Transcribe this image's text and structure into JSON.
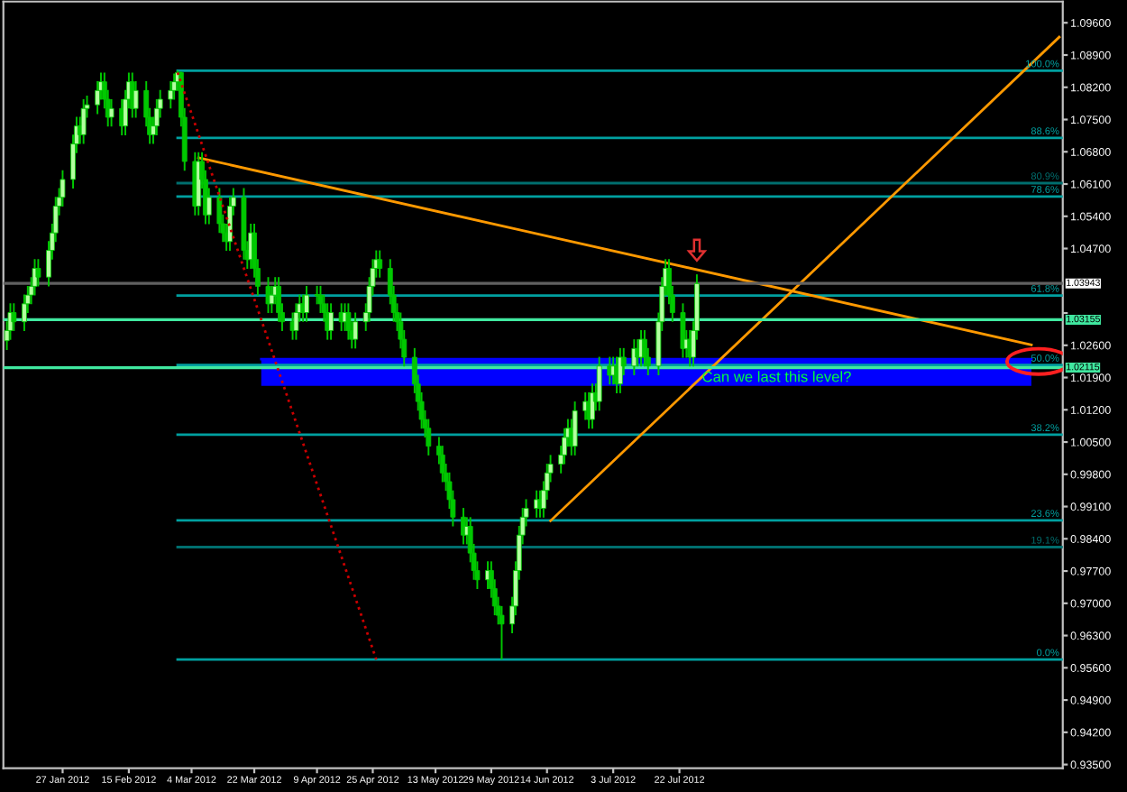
{
  "chart_data": {
    "type": "candlestick",
    "x": [
      "2012-01-11",
      "2012-01-12",
      "2012-01-13",
      "2012-01-16",
      "2012-01-17",
      "2012-01-18",
      "2012-01-19",
      "2012-01-20",
      "2012-01-23",
      "2012-01-24",
      "2012-01-25",
      "2012-01-26",
      "2012-01-27",
      "2012-01-30",
      "2012-01-31",
      "2012-02-01",
      "2012-02-02",
      "2012-02-03",
      "2012-02-06",
      "2012-02-07",
      "2012-02-08",
      "2012-02-09",
      "2012-02-10",
      "2012-02-13",
      "2012-02-14",
      "2012-02-15",
      "2012-02-16",
      "2012-02-17",
      "2012-02-20",
      "2012-02-21",
      "2012-02-22",
      "2012-02-23",
      "2012-02-24",
      "2012-02-27",
      "2012-02-28",
      "2012-02-29",
      "2012-03-01",
      "2012-03-02",
      "2012-03-05",
      "2012-03-06",
      "2012-03-07",
      "2012-03-08",
      "2012-03-09",
      "2012-03-12",
      "2012-03-13",
      "2012-03-14",
      "2012-03-15",
      "2012-03-16",
      "2012-03-19",
      "2012-03-20",
      "2012-03-21",
      "2012-03-22",
      "2012-03-23",
      "2012-03-26",
      "2012-03-27",
      "2012-03-28",
      "2012-03-29",
      "2012-03-30",
      "2012-04-02",
      "2012-04-03",
      "2012-04-04",
      "2012-04-05",
      "2012-04-06",
      "2012-04-09",
      "2012-04-10",
      "2012-04-11",
      "2012-04-12",
      "2012-04-13",
      "2012-04-16",
      "2012-04-17",
      "2012-04-18",
      "2012-04-19",
      "2012-04-20",
      "2012-04-23",
      "2012-04-24",
      "2012-04-25",
      "2012-04-26",
      "2012-04-27",
      "2012-04-30",
      "2012-05-01",
      "2012-05-02",
      "2012-05-03",
      "2012-05-04",
      "2012-05-07",
      "2012-05-08",
      "2012-05-09",
      "2012-05-10",
      "2012-05-11",
      "2012-05-14",
      "2012-05-15",
      "2012-05-16",
      "2012-05-17",
      "2012-05-18",
      "2012-05-21",
      "2012-05-22",
      "2012-05-23",
      "2012-05-24",
      "2012-05-25",
      "2012-05-28",
      "2012-05-29",
      "2012-05-30",
      "2012-05-31",
      "2012-06-01",
      "2012-06-04",
      "2012-06-05",
      "2012-06-06",
      "2012-06-07",
      "2012-06-08",
      "2012-06-11",
      "2012-06-12",
      "2012-06-13",
      "2012-06-14",
      "2012-06-15",
      "2012-06-18",
      "2012-06-19",
      "2012-06-20",
      "2012-06-21",
      "2012-06-22",
      "2012-06-25",
      "2012-06-26",
      "2012-06-27",
      "2012-06-28",
      "2012-06-29",
      "2012-07-02",
      "2012-07-03",
      "2012-07-04",
      "2012-07-05",
      "2012-07-06",
      "2012-07-09",
      "2012-07-10",
      "2012-07-11",
      "2012-07-12",
      "2012-07-13",
      "2012-07-16",
      "2012-07-17",
      "2012-07-18",
      "2012-07-19",
      "2012-07-20",
      "2012-07-23",
      "2012-07-24",
      "2012-07-25",
      "2012-07-26",
      "2012-07-27"
    ],
    "ohlc": [
      [
        1.027,
        1.0312,
        1.025,
        1.0292
      ],
      [
        1.0292,
        1.0351,
        1.0272,
        1.0331
      ],
      [
        1.0331,
        1.0351,
        1.0291,
        1.0311
      ],
      [
        1.0311,
        1.037,
        1.0291,
        1.035
      ],
      [
        1.035,
        1.0389,
        1.033,
        1.0369
      ],
      [
        1.0369,
        1.0408,
        1.0349,
        1.0388
      ],
      [
        1.0388,
        1.0447,
        1.0368,
        1.0427
      ],
      [
        1.0427,
        1.0447,
        1.0388,
        1.0408
      ],
      [
        1.0408,
        1.0486,
        1.0388,
        1.0466
      ],
      [
        1.0466,
        1.0524,
        1.0446,
        1.0504
      ],
      [
        1.0504,
        1.0582,
        1.0484,
        1.0562
      ],
      [
        1.0562,
        1.0601,
        1.0542,
        1.0581
      ],
      [
        1.0581,
        1.064,
        1.0561,
        1.062
      ],
      [
        1.062,
        1.0717,
        1.06,
        1.0697
      ],
      [
        1.0697,
        1.0756,
        1.0677,
        1.0736
      ],
      [
        1.0736,
        1.0756,
        1.0697,
        1.0717
      ],
      [
        1.0717,
        1.0794,
        1.0697,
        1.0774
      ],
      [
        1.0774,
        1.0802,
        1.0754,
        1.0782
      ],
      [
        1.0782,
        1.0833,
        1.0762,
        1.0813
      ],
      [
        1.0813,
        1.0852,
        1.0793,
        1.0832
      ],
      [
        1.0832,
        1.0852,
        1.0774,
        1.0794
      ],
      [
        1.0794,
        1.0814,
        1.0735,
        1.0755
      ],
      [
        1.0755,
        1.0794,
        1.0735,
        1.0774
      ],
      [
        1.0774,
        1.0794,
        1.0716,
        1.0736
      ],
      [
        1.0736,
        1.0814,
        1.0716,
        1.0794
      ],
      [
        1.0794,
        1.0852,
        1.0774,
        1.0832
      ],
      [
        1.0832,
        1.0852,
        1.0754,
        1.0774
      ],
      [
        1.0774,
        1.0833,
        1.0754,
        1.0813
      ],
      [
        1.0813,
        1.0833,
        1.0735,
        1.0755
      ],
      [
        1.0755,
        1.0775,
        1.0697,
        1.0717
      ],
      [
        1.0717,
        1.0756,
        1.0697,
        1.0736
      ],
      [
        1.0736,
        1.0794,
        1.0716,
        1.0774
      ],
      [
        1.0774,
        1.0814,
        1.0754,
        1.0794
      ],
      [
        1.0794,
        1.0833,
        1.0774,
        1.0813
      ],
      [
        1.0813,
        1.085,
        1.0793,
        1.0832
      ],
      [
        1.0832,
        1.0856,
        1.0812,
        1.0852
      ],
      [
        1.0852,
        1.0854,
        1.0735,
        1.0755
      ],
      [
        1.0755,
        1.0775,
        1.0639,
        1.0659
      ],
      [
        1.0659,
        1.0679,
        1.0542,
        1.0562
      ],
      [
        1.0562,
        1.0679,
        1.0542,
        1.0659
      ],
      [
        1.0659,
        1.0679,
        1.06,
        1.062
      ],
      [
        1.062,
        1.064,
        1.0523,
        1.0543
      ],
      [
        1.0543,
        1.0601,
        1.0523,
        1.0581
      ],
      [
        1.0581,
        1.0601,
        1.0504,
        1.0524
      ],
      [
        1.0524,
        1.0544,
        1.0484,
        1.0504
      ],
      [
        1.0504,
        1.0524,
        1.0465,
        1.0485
      ],
      [
        1.0485,
        1.0582,
        1.0465,
        1.0562
      ],
      [
        1.0562,
        1.0601,
        1.0542,
        1.0581
      ],
      [
        1.0581,
        1.0601,
        1.0446,
        1.0466
      ],
      [
        1.0466,
        1.0486,
        1.0426,
        1.0446
      ],
      [
        1.0446,
        1.0524,
        1.0426,
        1.0504
      ],
      [
        1.0504,
        1.0524,
        1.0407,
        1.0427
      ],
      [
        1.0427,
        1.0447,
        1.0368,
        1.0388
      ],
      [
        1.0388,
        1.0408,
        1.033,
        1.035
      ],
      [
        1.035,
        1.0389,
        1.033,
        1.0369
      ],
      [
        1.0369,
        1.0408,
        1.0349,
        1.0388
      ],
      [
        1.0388,
        1.0408,
        1.0311,
        1.0331
      ],
      [
        1.0331,
        1.0351,
        1.0291,
        1.0311
      ],
      [
        1.0311,
        1.0331,
        1.0272,
        1.0292
      ],
      [
        1.0292,
        1.0351,
        1.0272,
        1.0331
      ],
      [
        1.0331,
        1.037,
        1.0311,
        1.035
      ],
      [
        1.035,
        1.037,
        1.0311,
        1.0331
      ],
      [
        1.0331,
        1.0389,
        1.0311,
        1.0369
      ],
      [
        1.0369,
        1.0389,
        1.0349,
        1.0369
      ],
      [
        1.0369,
        1.0389,
        1.033,
        1.035
      ],
      [
        1.035,
        1.037,
        1.0311,
        1.0331
      ],
      [
        1.0331,
        1.0351,
        1.0272,
        1.0292
      ],
      [
        1.0292,
        1.0351,
        1.0272,
        1.0331
      ],
      [
        1.0331,
        1.0351,
        1.0291,
        1.0311
      ],
      [
        1.0311,
        1.0351,
        1.0291,
        1.0331
      ],
      [
        1.0331,
        1.0351,
        1.0272,
        1.0292
      ],
      [
        1.0292,
        1.0312,
        1.0253,
        1.0273
      ],
      [
        1.0273,
        1.0331,
        1.0253,
        1.0311
      ],
      [
        1.0311,
        1.0351,
        1.0291,
        1.0331
      ],
      [
        1.0331,
        1.0408,
        1.0311,
        1.0388
      ],
      [
        1.0388,
        1.0447,
        1.0368,
        1.0427
      ],
      [
        1.0427,
        1.0466,
        1.0407,
        1.0446
      ],
      [
        1.0446,
        1.0466,
        1.0407,
        1.0427
      ],
      [
        1.0427,
        1.0447,
        1.0349,
        1.0369
      ],
      [
        1.0369,
        1.0389,
        1.0311,
        1.0331
      ],
      [
        1.0331,
        1.0351,
        1.0291,
        1.0311
      ],
      [
        1.0311,
        1.0331,
        1.0253,
        1.0273
      ],
      [
        1.0273,
        1.0293,
        1.0214,
        1.0234
      ],
      [
        1.0234,
        1.0254,
        1.0156,
        1.0176
      ],
      [
        1.0176,
        1.0196,
        1.0118,
        1.0138
      ],
      [
        1.0138,
        1.0158,
        1.0079,
        1.0099
      ],
      [
        1.0099,
        1.0119,
        1.006,
        1.008
      ],
      [
        1.008,
        1.01,
        1.0021,
        1.0041
      ],
      [
        1.0041,
        1.0061,
        1.0002,
        1.0022
      ],
      [
        1.0022,
        1.0042,
        0.9963,
        0.9983
      ],
      [
        0.9983,
        1.0003,
        0.9944,
        0.9964
      ],
      [
        0.9964,
        0.9984,
        0.9905,
        0.9925
      ],
      [
        0.9925,
        0.9945,
        0.9867,
        0.9887
      ],
      [
        0.9887,
        0.9907,
        0.9828,
        0.9848
      ],
      [
        0.9848,
        0.9887,
        0.9828,
        0.9867
      ],
      [
        0.9867,
        0.9887,
        0.9789,
        0.9809
      ],
      [
        0.9809,
        0.9829,
        0.9751,
        0.9771
      ],
      [
        0.9771,
        0.9791,
        0.9731,
        0.9751
      ],
      [
        0.9751,
        0.9791,
        0.9731,
        0.9771
      ],
      [
        0.9771,
        0.9791,
        0.9712,
        0.9732
      ],
      [
        0.9732,
        0.9752,
        0.9674,
        0.9694
      ],
      [
        0.9694,
        0.9714,
        0.9654,
        0.9674
      ],
      [
        0.9674,
        0.9694,
        0.9578,
        0.9655
      ],
      [
        0.9655,
        0.9714,
        0.9635,
        0.9694
      ],
      [
        0.9694,
        0.9791,
        0.9674,
        0.9771
      ],
      [
        0.9771,
        0.9868,
        0.9751,
        0.9848
      ],
      [
        0.9848,
        0.9907,
        0.9828,
        0.9887
      ],
      [
        0.9887,
        0.9926,
        0.9867,
        0.9906
      ],
      [
        0.9906,
        0.9945,
        0.9886,
        0.9925
      ],
      [
        0.9925,
        0.9945,
        0.9886,
        0.9906
      ],
      [
        0.9906,
        0.9965,
        0.9886,
        0.9945
      ],
      [
        0.9945,
        1.0003,
        0.9925,
        0.9983
      ],
      [
        0.9983,
        1.0022,
        0.9963,
        1.0002
      ],
      [
        1.0002,
        1.0042,
        0.9982,
        1.0022
      ],
      [
        1.0022,
        1.008,
        1.0002,
        1.006
      ],
      [
        1.006,
        1.01,
        1.004,
        1.008
      ],
      [
        1.008,
        1.01,
        1.0021,
        1.0041
      ],
      [
        1.0041,
        1.0138,
        1.0021,
        1.0118
      ],
      [
        1.0118,
        1.0158,
        1.0098,
        1.0138
      ],
      [
        1.0138,
        1.0158,
        1.0079,
        1.0099
      ],
      [
        1.0099,
        1.0177,
        1.0079,
        1.0157
      ],
      [
        1.0157,
        1.0177,
        1.0118,
        1.0138
      ],
      [
        1.0138,
        1.0235,
        1.0118,
        1.0215
      ],
      [
        1.0215,
        1.0235,
        1.0175,
        1.0195
      ],
      [
        1.0195,
        1.0235,
        1.0175,
        1.0215
      ],
      [
        1.0215,
        1.0235,
        1.0156,
        1.0176
      ],
      [
        1.0176,
        1.0254,
        1.0156,
        1.0234
      ],
      [
        1.0234,
        1.0254,
        1.0195,
        1.0215
      ],
      [
        1.0215,
        1.0273,
        1.0195,
        1.0253
      ],
      [
        1.0253,
        1.0273,
        1.0214,
        1.0234
      ],
      [
        1.0234,
        1.0293,
        1.0214,
        1.0273
      ],
      [
        1.0273,
        1.0293,
        1.0214,
        1.0234
      ],
      [
        1.0234,
        1.0254,
        1.0195,
        1.0215
      ],
      [
        1.0215,
        1.0331,
        1.0195,
        1.0311
      ],
      [
        1.0311,
        1.0408,
        1.0291,
        1.0388
      ],
      [
        1.0388,
        1.0447,
        1.0368,
        1.0427
      ],
      [
        1.0427,
        1.0447,
        1.0349,
        1.0369
      ],
      [
        1.0369,
        1.0389,
        1.0311,
        1.0331
      ],
      [
        1.0331,
        1.0351,
        1.0233,
        1.0253
      ],
      [
        1.0253,
        1.0293,
        1.0233,
        1.0273
      ],
      [
        1.0273,
        1.0293,
        1.0214,
        1.0234
      ],
      [
        1.0234,
        1.0312,
        1.0214,
        1.0292
      ],
      [
        1.0292,
        1.0414,
        1.0272,
        1.0394
      ]
    ],
    "color": "#00c800",
    "series": [
      {
        "type": "line",
        "name": "100.0%",
        "color": "#00a0a0",
        "x": [
          "2012-02-29",
          "2012-11-09"
        ],
        "values": [
          1.0856,
          1.0856
        ]
      },
      {
        "type": "line",
        "name": "88.6%",
        "color": "#00a0a0",
        "x": [
          "2012-02-29",
          "2012-11-09"
        ],
        "values": [
          1.071,
          1.071
        ]
      },
      {
        "type": "line",
        "name": "80.9%",
        "color": "#006e6e",
        "x": [
          "2012-02-29",
          "2012-11-09"
        ],
        "values": [
          1.0612,
          1.0612
        ]
      },
      {
        "type": "line",
        "name": "78.6%",
        "color": "#00a0a0",
        "x": [
          "2012-02-29",
          "2012-11-09"
        ],
        "values": [
          1.0583,
          1.0583
        ]
      },
      {
        "type": "line",
        "name": "61.8%",
        "color": "#00a0a0",
        "x": [
          "2012-02-29",
          "2012-11-09"
        ],
        "values": [
          1.0368,
          1.0368
        ]
      },
      {
        "type": "line",
        "name": "50.0%",
        "color": "#00a0a0",
        "x": [
          "2012-02-29",
          "2012-11-09"
        ],
        "values": [
          1.0217,
          1.0217
        ]
      },
      {
        "type": "line",
        "name": "38.2%",
        "color": "#00a0a0",
        "x": [
          "2012-02-29",
          "2012-11-09"
        ],
        "values": [
          1.0066,
          1.0066
        ]
      },
      {
        "type": "line",
        "name": "23.6%",
        "color": "#00a0a0",
        "x": [
          "2012-02-29",
          "2012-11-09"
        ],
        "values": [
          0.988,
          0.988
        ]
      },
      {
        "type": "line",
        "name": "19.1%",
        "color": "#006e6e",
        "x": [
          "2012-02-29",
          "2012-11-09"
        ],
        "values": [
          0.9822,
          0.9822
        ]
      },
      {
        "type": "line",
        "name": "0.0%",
        "color": "#00a0a0",
        "x": [
          "2012-02-29",
          "2012-11-09"
        ],
        "values": [
          0.9578,
          0.9578
        ]
      },
      {
        "type": "line",
        "color": "#0000ff",
        "x": [
          "2012-03-24",
          "2012-10-31"
        ],
        "values": [
          1.023,
          1.023
        ],
        "lower": [
          1.0172,
          1.0172
        ],
        "upper": [
          1.023,
          1.023
        ]
      },
      {
        "type": "line",
        "color": "#ff9900",
        "x": [
          "2012-03-06",
          "2012-10-31"
        ],
        "values": [
          1.0667,
          1.0261
        ]
      },
      {
        "type": "line",
        "color": "#ff9900",
        "x": [
          "2012-06-15",
          "2012-11-08"
        ],
        "values": [
          0.9879,
          1.0929
        ]
      },
      {
        "type": "line",
        "color": "#cc0000",
        "line_style": "dotted",
        "x": [
          "2012-02-29",
          "2012-04-26"
        ],
        "values": [
          1.0852,
          0.9578
        ]
      }
    ],
    "ref_lines": [
      {
        "axis": "y",
        "value": 1.03943,
        "label": "1.03943",
        "color": "#606060"
      },
      {
        "axis": "y",
        "value": 1.03155,
        "label": "1.03155",
        "color": "#40e8a0"
      },
      {
        "axis": "y",
        "value": 1.02115,
        "label": "1.02115",
        "color": "#40e8a0"
      }
    ],
    "annotations": [
      "Can we last this level?"
    ],
    "xlim": [
      "2012-01-10",
      "2012-11-09"
    ],
    "xticks": [
      {
        "value": "2012-01-27",
        "label": "27 Jan 2012"
      },
      {
        "value": "2012-02-15",
        "label": "15 Feb 2012"
      },
      {
        "value": "2012-03-04",
        "label": "4 Mar 2012"
      },
      {
        "value": "2012-03-22",
        "label": "22 Mar 2012"
      },
      {
        "value": "2012-04-09",
        "label": "9 Apr 2012"
      },
      {
        "value": "2012-04-25",
        "label": "25 Apr 2012"
      },
      {
        "value": "2012-05-13",
        "label": "13 May 2012"
      },
      {
        "value": "2012-05-29",
        "label": "29 May 2012"
      },
      {
        "value": "2012-06-14",
        "label": "14 Jun 2012"
      },
      {
        "value": "2012-07-03",
        "label": "3 Jul 2012"
      },
      {
        "value": "2012-07-22",
        "label": "22 Jul 2012"
      }
    ],
    "ylim": [
      0.9342,
      1.1006
    ],
    "yticks": [
      {
        "value": 1.096,
        "label": "1.09600"
      },
      {
        "value": 1.089,
        "label": "1.08900"
      },
      {
        "value": 1.082,
        "label": "1.08200"
      },
      {
        "value": 1.075,
        "label": "1.07500"
      },
      {
        "value": 1.068,
        "label": "1.06800"
      },
      {
        "value": 1.061,
        "label": "1.06100"
      },
      {
        "value": 1.054,
        "label": "1.05400"
      },
      {
        "value": 1.047,
        "label": "1.04700"
      },
      {
        "value": 1.033,
        "label": null
      },
      {
        "value": 1.026,
        "label": "1.02600"
      },
      {
        "value": 1.019,
        "label": "1.01900"
      },
      {
        "value": 1.012,
        "label": "1.01200"
      },
      {
        "value": 1.005,
        "label": "1.00500"
      },
      {
        "value": 0.998,
        "label": "0.99800"
      },
      {
        "value": 0.991,
        "label": "0.99100"
      },
      {
        "value": 0.984,
        "label": "0.98400"
      },
      {
        "value": 0.977,
        "label": "0.97700"
      },
      {
        "value": 0.97,
        "label": "0.97000"
      },
      {
        "value": 0.963,
        "label": "0.96300"
      },
      {
        "value": 0.956,
        "label": "0.95600"
      },
      {
        "value": 0.949,
        "label": "0.94900"
      },
      {
        "value": 0.942,
        "label": "0.94200"
      },
      {
        "value": 0.935,
        "label": "0.93500"
      }
    ],
    "grid": false,
    "legend": false
  }
}
